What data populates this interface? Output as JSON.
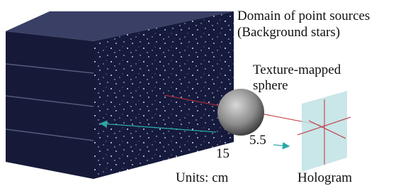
{
  "labels": {
    "domain": "Domain of point sources",
    "domain_note": "(Background stars)",
    "sphere_line1": "Texture-mapped",
    "sphere_line2": "sphere",
    "distance_near": "5.5",
    "distance_far": "15",
    "units": "Units: cm",
    "hologram": "Hologram"
  }
}
